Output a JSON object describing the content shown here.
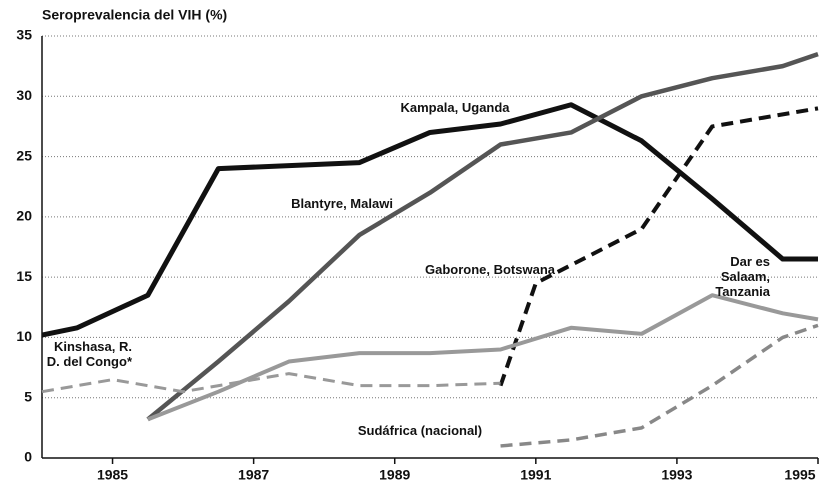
{
  "chart_data": {
    "type": "line",
    "title": "Seroprevalencia del VIH (%)",
    "xlim": [
      1984,
      1995
    ],
    "xticks": [
      1985,
      1987,
      1989,
      1991,
      1993,
      1995
    ],
    "ylim": [
      0,
      35
    ],
    "yticks": [
      0,
      5,
      10,
      15,
      20,
      25,
      30,
      35
    ],
    "grid": true,
    "series": [
      {
        "name": "Kampala, Uganda",
        "color": "#111111",
        "dash": false,
        "x": [
          1984,
          1984.5,
          1985.5,
          1986.5,
          1988.5,
          1989.5,
          1990.5,
          1991.5,
          1992.5,
          1993.5,
          1994.5,
          1995
        ],
        "values": [
          10.2,
          10.8,
          13.5,
          24,
          24.5,
          27,
          27.7,
          29.3,
          26.3,
          21.5,
          16.5,
          16.5
        ]
      },
      {
        "name": "Blantyre, Malawi",
        "color": "#555555",
        "dash": false,
        "x": [
          1985.5,
          1986.5,
          1987.5,
          1988.5,
          1989.5,
          1990.5,
          1991.5,
          1992.5,
          1993.5,
          1994.5,
          1995
        ],
        "values": [
          3.2,
          8,
          13,
          18.5,
          22,
          26,
          27,
          30,
          31.5,
          32.5,
          33.5
        ]
      },
      {
        "name": "Gaborone, Botswana",
        "color": "#111111",
        "dash": true,
        "x": [
          1990.5,
          1991,
          1992.5,
          1993.5,
          1994.5,
          1995
        ],
        "values": [
          6,
          14.5,
          19,
          27.5,
          28.5,
          29
        ]
      },
      {
        "name": "Dar es Salaam, Tanzania",
        "color": "#999999",
        "dash": false,
        "x": [
          1985.5,
          1986.5,
          1987.5,
          1988.5,
          1989.5,
          1990.5,
          1991.5,
          1992.5,
          1993.5,
          1994.5,
          1995
        ],
        "values": [
          3.2,
          5.5,
          8,
          8.7,
          8.7,
          9,
          10.8,
          10.3,
          13.5,
          12,
          11.5
        ]
      },
      {
        "name": "Kinshasa, R. D. del Congo*",
        "color": "#999999",
        "dash": true,
        "x": [
          1984,
          1985,
          1986,
          1987.5,
          1988.5,
          1989.5,
          1990.5
        ],
        "values": [
          5.5,
          6.5,
          5.5,
          7,
          6,
          6,
          6.2
        ]
      },
      {
        "name": "Sudáfrica (nacional)",
        "color": "#888888",
        "dash": true,
        "x": [
          1990.5,
          1991.5,
          1992.5,
          1993.5,
          1994.5,
          1995
        ],
        "values": [
          1,
          1.5,
          2.5,
          6,
          10,
          11
        ]
      }
    ]
  }
}
